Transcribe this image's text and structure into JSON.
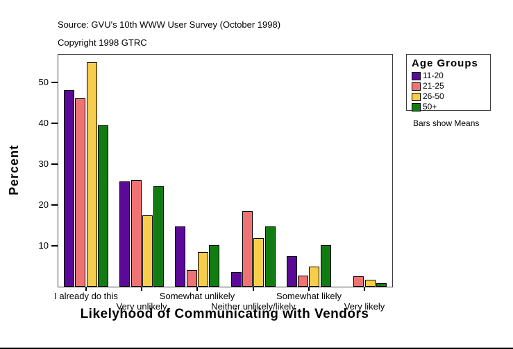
{
  "header": {
    "source": "Source: GVU's 10th WWW User Survey (October 1998)",
    "copyright": "Copyright 1998 GTRC"
  },
  "legend": {
    "title": "Age Groups",
    "note": "Bars show Means",
    "items": [
      {
        "label": "11-20",
        "color": "#5A0A96"
      },
      {
        "label": "21-25",
        "color": "#F07373"
      },
      {
        "label": "26-50",
        "color": "#F6CE4C"
      },
      {
        "label": "50+",
        "color": "#127C12"
      }
    ]
  },
  "chart_data": {
    "type": "bar",
    "title": "Likelyhood of Communicating with Vendors",
    "xlabel": "",
    "ylabel": "Percent",
    "categories": [
      "I already do this",
      "Very unlikely",
      "Somewhat unlikely",
      "Neither unlikely/likely",
      "Somewhat likely",
      "Very likely"
    ],
    "series": [
      {
        "name": "11-20",
        "color": "#5A0A96",
        "values": [
          48.2,
          25.8,
          14.7,
          3.6,
          7.4,
          0
        ]
      },
      {
        "name": "21-25",
        "color": "#F07373",
        "values": [
          46.1,
          26.1,
          4.0,
          18.4,
          2.7,
          2.6
        ]
      },
      {
        "name": "26-50",
        "color": "#F6CE4C",
        "values": [
          54.9,
          17.5,
          8.5,
          11.9,
          4.9,
          1.7
        ]
      },
      {
        "name": "50+",
        "color": "#127C12",
        "values": [
          39.5,
          24.6,
          10.1,
          14.7,
          10.1,
          0.9
        ]
      }
    ],
    "yticks": [
      10,
      20,
      30,
      40,
      50
    ],
    "ylim": [
      0,
      56.8
    ],
    "grid": false,
    "legend_position": "right",
    "legend_title": "Age Groups",
    "note": "Bars show Means"
  }
}
